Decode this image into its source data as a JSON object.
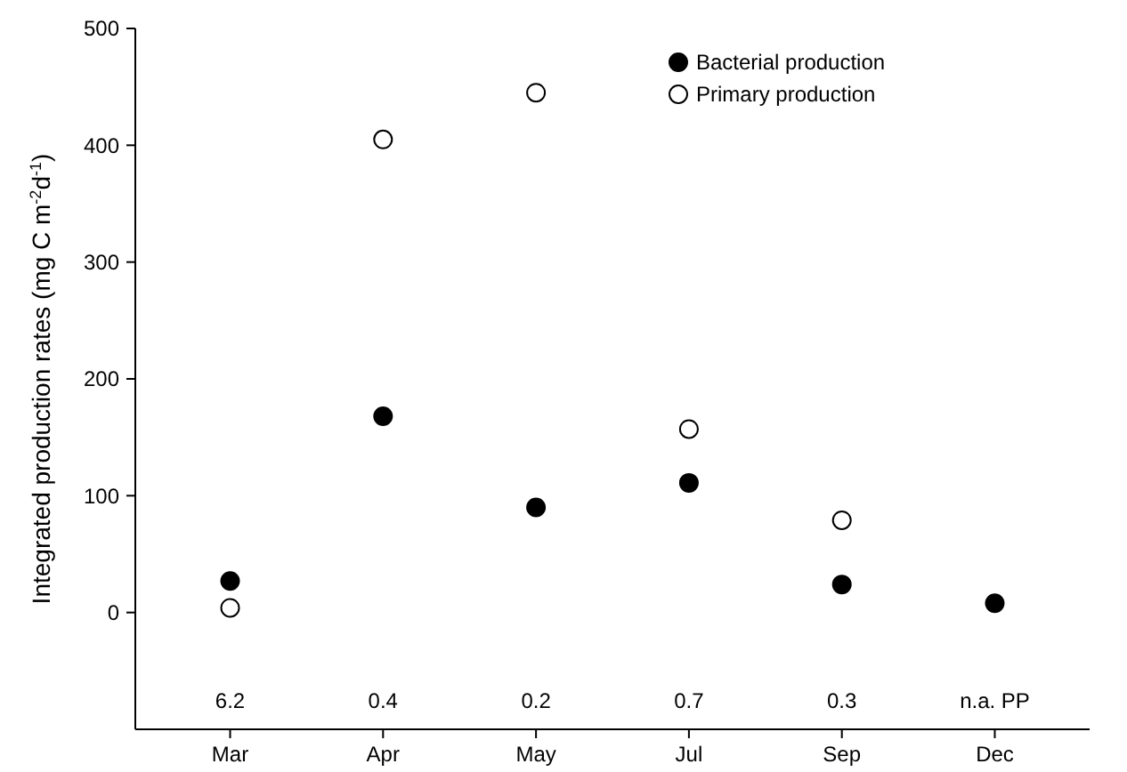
{
  "chart_data": {
    "type": "scatter",
    "ylabel": "Integrated production rates (mg C m$^{-2}$d$^{-1}$)",
    "categories": [
      "Mar",
      "Apr",
      "May",
      "Jul",
      "Sep",
      "Dec"
    ],
    "series": [
      {
        "name": "Bacterial production",
        "color": "#000000",
        "values": [
          27,
          168,
          90,
          111,
          24,
          8
        ]
      },
      {
        "name": "Primary production",
        "color": "#ffffff",
        "values": [
          4,
          405,
          445,
          157,
          79,
          null
        ]
      }
    ],
    "ylim": [
      -100,
      500
    ],
    "yticks": [
      0,
      100,
      200,
      300,
      400,
      500
    ],
    "marker": "circle",
    "legend": "top right",
    "grid": false,
    "annotations": [
      "6.2",
      "0.4",
      "0.2",
      "0.7",
      "0.3",
      "n.a. PP"
    ]
  }
}
